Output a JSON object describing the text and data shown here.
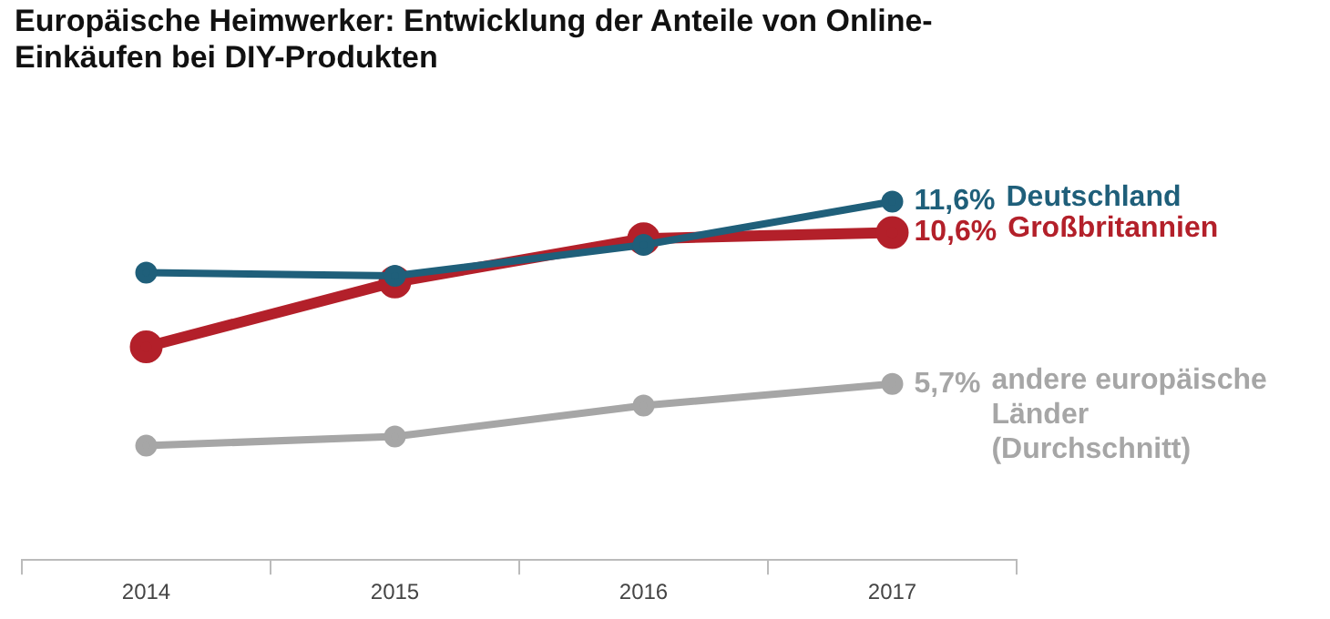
{
  "chart_data": {
    "type": "line",
    "title": "Europäische Heimwerker: Entwicklung der Anteile von Online-Einkäufen bei DIY-Produkten",
    "categories": [
      "2014",
      "2015",
      "2016",
      "2017"
    ],
    "series": [
      {
        "name": "Deutschland",
        "color": "#1f5f7a",
        "values": [
          9.3,
          9.2,
          10.2,
          11.6
        ],
        "value_labels": [
          null,
          null,
          null,
          "11,6%"
        ]
      },
      {
        "name": "Großbritannien",
        "color": "#b3202a",
        "values": [
          6.9,
          9.0,
          10.4,
          10.6
        ],
        "value_labels": [
          null,
          null,
          null,
          "10,6%"
        ]
      },
      {
        "name": "andere europäische Länder (Durchschnitt)",
        "color": "#a6a6a6",
        "values": [
          3.7,
          4.0,
          5.0,
          5.7
        ],
        "value_labels": [
          null,
          null,
          null,
          "5,7%"
        ]
      }
    ],
    "tick_labels": "x",
    "grid": false,
    "legend": false,
    "marker": "circle",
    "line_style": "solid"
  }
}
